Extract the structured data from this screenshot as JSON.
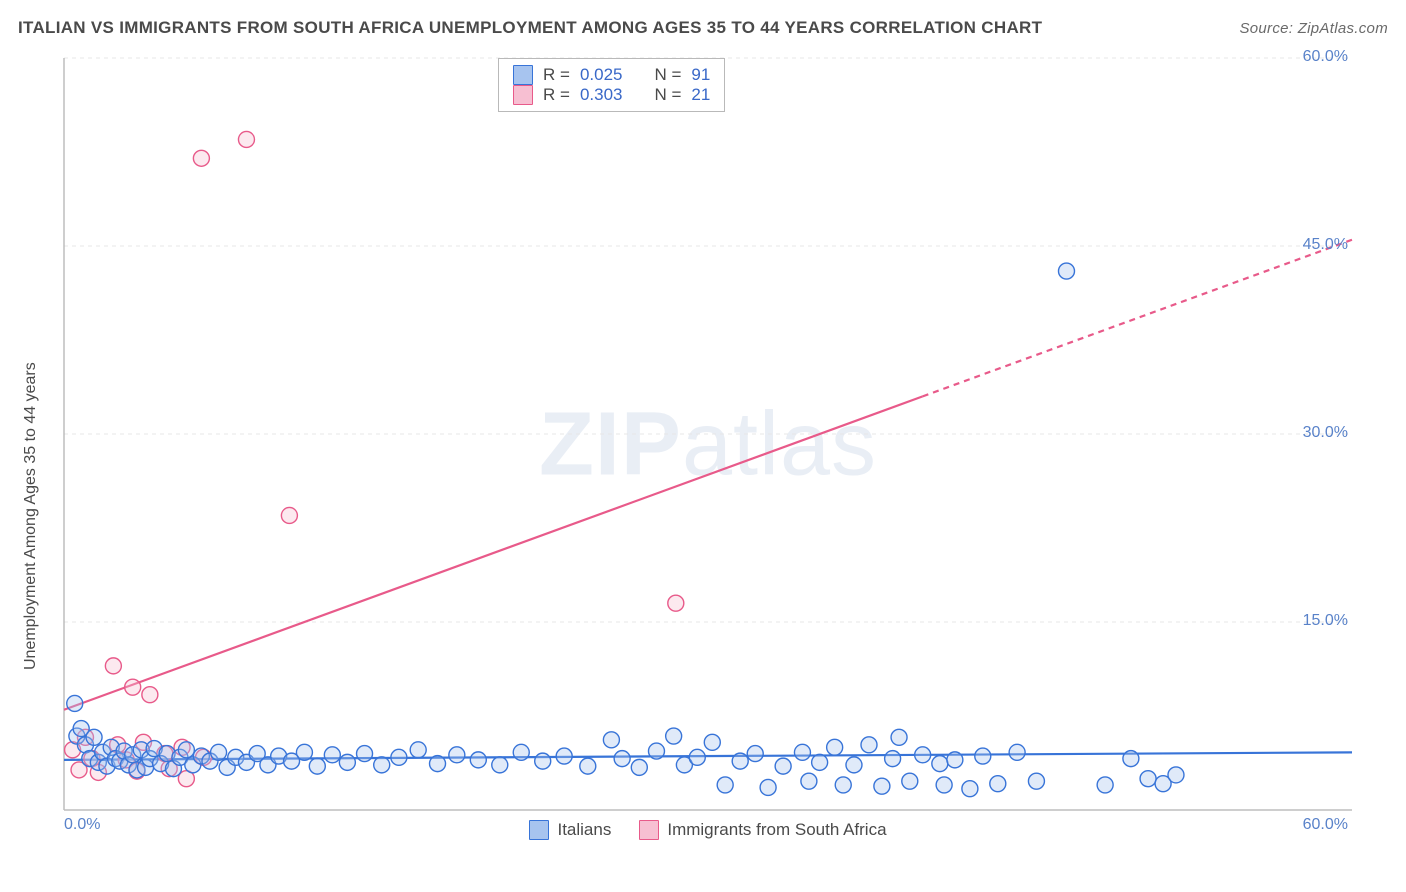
{
  "title": "ITALIAN VS IMMIGRANTS FROM SOUTH AFRICA UNEMPLOYMENT AMONG AGES 35 TO 44 YEARS CORRELATION CHART",
  "source": "Source: ZipAtlas.com",
  "watermark_main": "ZIP",
  "watermark_suffix": "atlas",
  "y_axis_label": "Unemployment Among Ages 35 to 44 years",
  "chart": {
    "type": "scatter-with-regression",
    "background_color": "#ffffff",
    "grid_color": "#e7e7e7",
    "axis_color": "#bdbdbd",
    "xlim": [
      0,
      60
    ],
    "ylim": [
      0,
      60
    ],
    "x_ticks": [
      {
        "v": 0,
        "label": "0.0%"
      },
      {
        "v": 60,
        "label": "60.0%"
      }
    ],
    "y_ticks": [
      {
        "v": 15,
        "label": "15.0%"
      },
      {
        "v": 30,
        "label": "30.0%"
      },
      {
        "v": 45,
        "label": "45.0%"
      },
      {
        "v": 60,
        "label": "60.0%"
      }
    ],
    "marker_radius": 8,
    "marker_stroke_width": 1.4,
    "marker_fill_opacity": 0.35,
    "regression_line_width": 2.2,
    "regression_dash": "6,5",
    "series": [
      {
        "key": "italians",
        "label": "Italians",
        "stroke": "#3874d8",
        "fill": "#a7c4ef",
        "R": "0.025",
        "N": "91",
        "reg_from": [
          0,
          4.0
        ],
        "reg_to": [
          60,
          4.6
        ],
        "reg_solid_until": 60,
        "points": [
          [
            0.5,
            8.5
          ],
          [
            0.6,
            5.9
          ],
          [
            0.8,
            6.5
          ],
          [
            1.0,
            5.2
          ],
          [
            1.2,
            4.1
          ],
          [
            1.4,
            5.8
          ],
          [
            1.6,
            3.8
          ],
          [
            1.8,
            4.6
          ],
          [
            2.0,
            3.5
          ],
          [
            2.2,
            5.0
          ],
          [
            2.4,
            4.1
          ],
          [
            2.6,
            3.9
          ],
          [
            2.8,
            4.7
          ],
          [
            3.0,
            3.6
          ],
          [
            3.2,
            4.4
          ],
          [
            3.4,
            3.2
          ],
          [
            3.6,
            4.8
          ],
          [
            3.8,
            3.4
          ],
          [
            4.0,
            4.1
          ],
          [
            4.2,
            4.9
          ],
          [
            4.5,
            3.7
          ],
          [
            4.8,
            4.5
          ],
          [
            5.1,
            3.3
          ],
          [
            5.4,
            4.2
          ],
          [
            5.7,
            4.8
          ],
          [
            6.0,
            3.6
          ],
          [
            6.4,
            4.3
          ],
          [
            6.8,
            3.9
          ],
          [
            7.2,
            4.6
          ],
          [
            7.6,
            3.4
          ],
          [
            8.0,
            4.2
          ],
          [
            8.5,
            3.8
          ],
          [
            9.0,
            4.5
          ],
          [
            9.5,
            3.6
          ],
          [
            10.0,
            4.3
          ],
          [
            10.6,
            3.9
          ],
          [
            11.2,
            4.6
          ],
          [
            11.8,
            3.5
          ],
          [
            12.5,
            4.4
          ],
          [
            13.2,
            3.8
          ],
          [
            14.0,
            4.5
          ],
          [
            14.8,
            3.6
          ],
          [
            15.6,
            4.2
          ],
          [
            16.5,
            4.8
          ],
          [
            17.4,
            3.7
          ],
          [
            18.3,
            4.4
          ],
          [
            19.3,
            4.0
          ],
          [
            20.3,
            3.6
          ],
          [
            21.3,
            4.6
          ],
          [
            22.3,
            3.9
          ],
          [
            23.3,
            4.3
          ],
          [
            24.4,
            3.5
          ],
          [
            25.5,
            5.6
          ],
          [
            26.0,
            4.1
          ],
          [
            26.8,
            3.4
          ],
          [
            27.6,
            4.7
          ],
          [
            28.4,
            5.9
          ],
          [
            28.9,
            3.6
          ],
          [
            29.5,
            4.2
          ],
          [
            30.2,
            5.4
          ],
          [
            30.8,
            2.0
          ],
          [
            31.5,
            3.9
          ],
          [
            32.2,
            4.5
          ],
          [
            32.8,
            1.8
          ],
          [
            33.5,
            3.5
          ],
          [
            34.4,
            4.6
          ],
          [
            34.7,
            2.3
          ],
          [
            35.2,
            3.8
          ],
          [
            35.9,
            5.0
          ],
          [
            36.3,
            2.0
          ],
          [
            36.8,
            3.6
          ],
          [
            37.5,
            5.2
          ],
          [
            38.1,
            1.9
          ],
          [
            38.6,
            4.1
          ],
          [
            38.9,
            5.8
          ],
          [
            39.4,
            2.3
          ],
          [
            40.0,
            4.4
          ],
          [
            40.8,
            3.7
          ],
          [
            41.0,
            2.0
          ],
          [
            41.5,
            4.0
          ],
          [
            42.2,
            1.7
          ],
          [
            42.8,
            4.3
          ],
          [
            43.5,
            2.1
          ],
          [
            44.4,
            4.6
          ],
          [
            45.3,
            2.3
          ],
          [
            46.7,
            43.0
          ],
          [
            48.5,
            2.0
          ],
          [
            49.7,
            4.1
          ],
          [
            50.5,
            2.5
          ],
          [
            51.2,
            2.1
          ],
          [
            51.8,
            2.8
          ]
        ]
      },
      {
        "key": "south_africa",
        "label": "Immigrants from South Africa",
        "stroke": "#e85a8a",
        "fill": "#f7bfd2",
        "R": "0.303",
        "N": "21",
        "reg_from": [
          0,
          8.0
        ],
        "reg_to": [
          60,
          45.5
        ],
        "reg_solid_until": 40,
        "points": [
          [
            0.4,
            4.8
          ],
          [
            0.7,
            3.2
          ],
          [
            1.0,
            5.8
          ],
          [
            1.3,
            4.1
          ],
          [
            1.6,
            3.0
          ],
          [
            2.3,
            11.5
          ],
          [
            2.5,
            5.2
          ],
          [
            2.9,
            4.0
          ],
          [
            3.2,
            9.8
          ],
          [
            3.4,
            3.1
          ],
          [
            3.7,
            5.4
          ],
          [
            4.0,
            9.2
          ],
          [
            4.7,
            4.5
          ],
          [
            4.9,
            3.3
          ],
          [
            5.5,
            5.0
          ],
          [
            5.7,
            2.5
          ],
          [
            6.4,
            52.0
          ],
          [
            6.5,
            4.2
          ],
          [
            8.5,
            53.5
          ],
          [
            10.5,
            23.5
          ],
          [
            28.5,
            16.5
          ]
        ]
      }
    ]
  },
  "stats_labels": {
    "r": "R =",
    "n": "N ="
  },
  "legend_series_keys": [
    "italians",
    "south_africa"
  ]
}
